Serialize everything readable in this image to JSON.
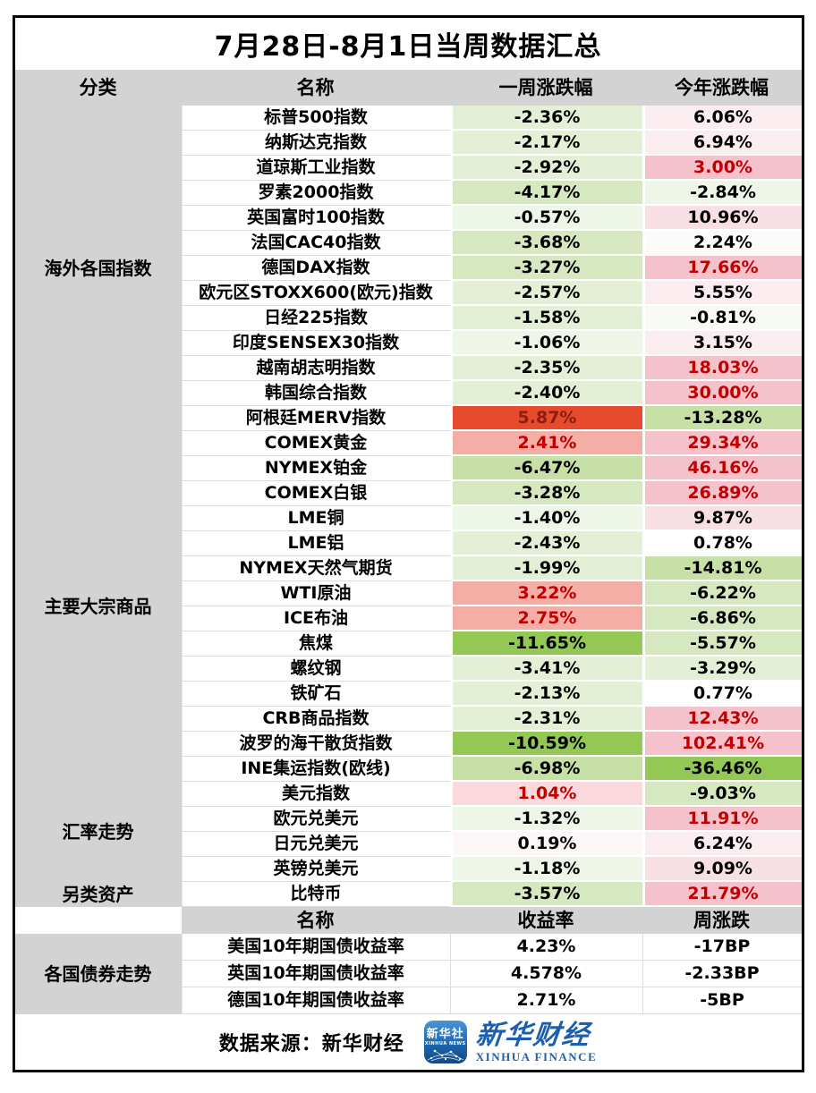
{
  "chart_data": {
    "type": "table",
    "title": "7月28日-8月1日当周数据汇总",
    "header1": {
      "category": "分类",
      "name": "名称",
      "week": "一周涨跌幅",
      "ytd": "今年涨跌幅"
    },
    "header2": {
      "name": "名称",
      "yield": "收益率",
      "week": "周涨跌"
    },
    "groups": [
      {
        "category": "海外各国指数",
        "rows": [
          {
            "name": "标普500指数",
            "week": {
              "text": "-2.36%",
              "bg": "g2",
              "fg": "black"
            },
            "ytd": {
              "text": "6.06%",
              "bg": "p2",
              "fg": "black"
            }
          },
          {
            "name": "纳斯达克指数",
            "week": {
              "text": "-2.17%",
              "bg": "g2",
              "fg": "black"
            },
            "ytd": {
              "text": "6.94%",
              "bg": "p2",
              "fg": "black"
            }
          },
          {
            "name": "道琼斯工业指数",
            "week": {
              "text": "-2.92%",
              "bg": "g2",
              "fg": "black"
            },
            "ytd": {
              "text": "3.00%",
              "bg": "p4",
              "fg": "red"
            }
          },
          {
            "name": "罗素2000指数",
            "week": {
              "text": "-4.17%",
              "bg": "g3",
              "fg": "black"
            },
            "ytd": {
              "text": "-2.84%",
              "bg": "g1",
              "fg": "black"
            }
          },
          {
            "name": "英国富时100指数",
            "week": {
              "text": "-0.57%",
              "bg": "g1",
              "fg": "black"
            },
            "ytd": {
              "text": "10.96%",
              "bg": "p3",
              "fg": "black"
            }
          },
          {
            "name": "法国CAC40指数",
            "week": {
              "text": "-3.68%",
              "bg": "g3",
              "fg": "black"
            },
            "ytd": {
              "text": "2.24%",
              "bg": "p1",
              "fg": "black"
            }
          },
          {
            "name": "德国DAX指数",
            "week": {
              "text": "-3.27%",
              "bg": "g3",
              "fg": "black"
            },
            "ytd": {
              "text": "17.66%",
              "bg": "p4",
              "fg": "red"
            }
          },
          {
            "name": "欧元区STOXX600(欧元)指数",
            "week": {
              "text": "-2.57%",
              "bg": "g2",
              "fg": "black"
            },
            "ytd": {
              "text": "5.55%",
              "bg": "p2",
              "fg": "black"
            }
          },
          {
            "name": "日经225指数",
            "week": {
              "text": "-1.58%",
              "bg": "g2",
              "fg": "black"
            },
            "ytd": {
              "text": "-0.81%",
              "bg": "g0",
              "fg": "black"
            }
          },
          {
            "name": "印度SENSEX30指数",
            "week": {
              "text": "-1.06%",
              "bg": "g1",
              "fg": "black"
            },
            "ytd": {
              "text": "3.15%",
              "bg": "p2",
              "fg": "black"
            }
          },
          {
            "name": "越南胡志明指数",
            "week": {
              "text": "-2.35%",
              "bg": "g2",
              "fg": "black"
            },
            "ytd": {
              "text": "18.03%",
              "bg": "p4",
              "fg": "red"
            }
          },
          {
            "name": "韩国综合指数",
            "week": {
              "text": "-2.40%",
              "bg": "g2",
              "fg": "black"
            },
            "ytd": {
              "text": "30.00%",
              "bg": "p4",
              "fg": "red"
            }
          },
          {
            "name": "阿根廷MERV指数",
            "week": {
              "text": "5.87%",
              "bg": "red_strong",
              "fg": "darkred"
            },
            "ytd": {
              "text": "-13.28%",
              "bg": "g4",
              "fg": "black"
            }
          }
        ]
      },
      {
        "category": "主要大宗商品",
        "rows": [
          {
            "name": "COMEX黄金",
            "week": {
              "text": "2.41%",
              "bg": "salmon",
              "fg": "red"
            },
            "ytd": {
              "text": "29.34%",
              "bg": "p4",
              "fg": "red"
            }
          },
          {
            "name": "NYMEX铂金",
            "week": {
              "text": "-6.47%",
              "bg": "g4",
              "fg": "black"
            },
            "ytd": {
              "text": "46.16%",
              "bg": "p4",
              "fg": "red"
            }
          },
          {
            "name": "COMEX白银",
            "week": {
              "text": "-3.28%",
              "bg": "g3",
              "fg": "black"
            },
            "ytd": {
              "text": "26.89%",
              "bg": "p4",
              "fg": "red"
            }
          },
          {
            "name": "LME铜",
            "week": {
              "text": "-1.40%",
              "bg": "g1",
              "fg": "black"
            },
            "ytd": {
              "text": "9.87%",
              "bg": "p3",
              "fg": "black"
            }
          },
          {
            "name": "LME铝",
            "week": {
              "text": "-2.43%",
              "bg": "g2",
              "fg": "black"
            },
            "ytd": {
              "text": "0.78%",
              "bg": "white",
              "fg": "black"
            }
          },
          {
            "name": "NYMEX天然气期货",
            "week": {
              "text": "-1.99%",
              "bg": "g2",
              "fg": "black"
            },
            "ytd": {
              "text": "-14.81%",
              "bg": "g4",
              "fg": "black"
            }
          },
          {
            "name": "WTI原油",
            "week": {
              "text": "3.22%",
              "bg": "salmon",
              "fg": "red"
            },
            "ytd": {
              "text": "-6.22%",
              "bg": "g3",
              "fg": "black"
            }
          },
          {
            "name": "ICE布油",
            "week": {
              "text": "2.75%",
              "bg": "salmon",
              "fg": "red"
            },
            "ytd": {
              "text": "-6.86%",
              "bg": "g3",
              "fg": "black"
            }
          },
          {
            "name": "焦煤",
            "week": {
              "text": "-11.65%",
              "bg": "g5",
              "fg": "black"
            },
            "ytd": {
              "text": "-5.57%",
              "bg": "g3",
              "fg": "black"
            }
          },
          {
            "name": "螺纹钢",
            "week": {
              "text": "-3.41%",
              "bg": "g2",
              "fg": "black"
            },
            "ytd": {
              "text": "-3.29%",
              "bg": "g2",
              "fg": "black"
            }
          },
          {
            "name": "铁矿石",
            "week": {
              "text": "-2.13%",
              "bg": "g2",
              "fg": "black"
            },
            "ytd": {
              "text": "0.77%",
              "bg": "white",
              "fg": "black"
            }
          },
          {
            "name": "CRB商品指数",
            "week": {
              "text": "-2.31%",
              "bg": "g2",
              "fg": "black"
            },
            "ytd": {
              "text": "12.43%",
              "bg": "p4",
              "fg": "red"
            }
          },
          {
            "name": "波罗的海干散货指数",
            "week": {
              "text": "-10.59%",
              "bg": "g5",
              "fg": "black"
            },
            "ytd": {
              "text": "102.41%",
              "bg": "p4",
              "fg": "red"
            }
          },
          {
            "name": "INE集运指数(欧线)",
            "week": {
              "text": "-6.98%",
              "bg": "g4",
              "fg": "black"
            },
            "ytd": {
              "text": "-36.46%",
              "bg": "g5",
              "fg": "black"
            }
          }
        ]
      },
      {
        "category": "汇率走势",
        "rows": [
          {
            "name": "美元指数",
            "week": {
              "text": "1.04%",
              "bg": "pink_soft",
              "fg": "red"
            },
            "ytd": {
              "text": "-9.03%",
              "bg": "g3",
              "fg": "black"
            }
          },
          {
            "name": "欧元兑美元",
            "week": {
              "text": "-1.32%",
              "bg": "g1",
              "fg": "black"
            },
            "ytd": {
              "text": "11.91%",
              "bg": "p4",
              "fg": "red"
            }
          },
          {
            "name": "日元兑美元",
            "week": {
              "text": "0.19%",
              "bg": "p_faint",
              "fg": "black"
            },
            "ytd": {
              "text": "6.24%",
              "bg": "p2",
              "fg": "black"
            }
          },
          {
            "name": "英镑兑美元",
            "week": {
              "text": "-1.18%",
              "bg": "g1",
              "fg": "black"
            },
            "ytd": {
              "text": "9.09%",
              "bg": "p3",
              "fg": "black"
            }
          }
        ]
      },
      {
        "category": "另类资产",
        "rows": [
          {
            "name": "比特币",
            "week": {
              "text": "-3.57%",
              "bg": "g3",
              "fg": "black"
            },
            "ytd": {
              "text": "21.79%",
              "bg": "p4",
              "fg": "red"
            }
          }
        ]
      }
    ],
    "bond_section": {
      "category": "各国债券走势",
      "rows": [
        {
          "name": "美国10年期国债收益率",
          "yield": "4.23%",
          "week": "-17BP"
        },
        {
          "name": "英国10年期国债收益率",
          "yield": "4.578%",
          "week": "-2.33BP"
        },
        {
          "name": "德国10年期国债收益率",
          "yield": "2.71%",
          "week": "-5BP"
        }
      ]
    }
  },
  "colors": {
    "header_bg": "#d3d3d3",
    "g0": "#f7fbf3",
    "g1": "#eef6e7",
    "g2": "#e3f0d6",
    "g3": "#d5e8c0",
    "g4": "#c7e0a6",
    "g5": "#92c853",
    "p1": "#fdfafa",
    "p2": "#fbedef",
    "p3": "#f8dfe3",
    "p4": "#f5c2cb",
    "p_faint": "#fdf6f6",
    "pink_soft": "#fbd8db",
    "salmon": "#f4aea6",
    "red_strong": "#e74b2e",
    "white": "#ffffff",
    "text_black": "#000000",
    "text_red": "#c00000",
    "text_darkred": "#8c1e0f",
    "logo_blue": "#1b5fae"
  },
  "footer": {
    "source": "数据来源：新华财经",
    "news_logo": {
      "cn": "新华社",
      "en": "XINHUA NEWS"
    },
    "finance_logo": {
      "cn": "新华财经",
      "en": "XINHUA FINANCE"
    }
  }
}
